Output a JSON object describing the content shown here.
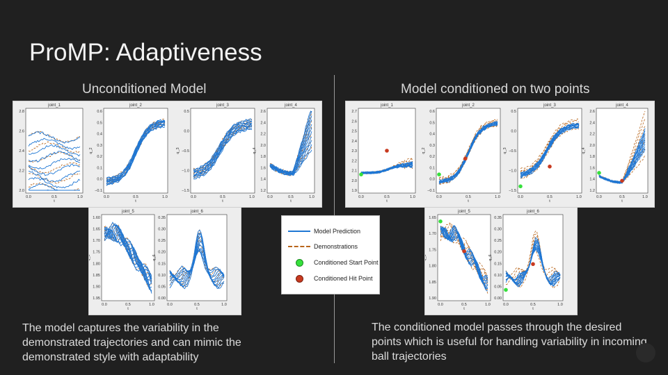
{
  "slide": {
    "title": "ProMP: Adaptiveness",
    "left_heading": "Unconditioned Model",
    "right_heading": "Model conditioned on two points",
    "left_caption": "The model captures the variability in the demonstrated trajectories and can mimic the demonstrated style with adaptability",
    "right_caption": "The conditioned model passes through the desired points which is useful for handling variability in incoming ball trajectories"
  },
  "legend": {
    "prediction": "Model Prediction",
    "demonstrations": "Demonstrations",
    "start_point": "Conditioned Start Point",
    "hit_point": "Conditioned Hit Point"
  },
  "colors": {
    "prediction": "#1f77d4",
    "demonstration": "#b8651b",
    "start_point": "#36e03c",
    "hit_point": "#c83a20"
  },
  "plots": {
    "joint_1": {
      "title": "joint_1",
      "ylabel": "",
      "yticks": [
        "2.8",
        "2.6",
        "2.4",
        "2.2",
        "2.0"
      ],
      "yticks_cond": [
        "2.7",
        "2.6",
        "2.5",
        "2.4",
        "2.3",
        "2.2",
        "2.1",
        "2.0",
        "1.9"
      ]
    },
    "joint_2": {
      "title": "joint_2",
      "ylabel": "q_2",
      "yticks": [
        "0.6",
        "0.5",
        "0.4",
        "0.3",
        "0.2",
        "0.1",
        "0.0",
        "−0.1"
      ],
      "yticks_cond": [
        "0.6",
        "0.5",
        "0.4",
        "0.3",
        "0.2",
        "0.1",
        "0.0",
        "−0.1"
      ]
    },
    "joint_3": {
      "title": "joint_3",
      "ylabel": "q_3",
      "yticks": [
        "0.5",
        "0.0",
        "−0.5",
        "−1.0",
        "−1.5"
      ],
      "yticks_cond": [
        "0.5",
        "0.0",
        "−0.5",
        "−1.0",
        "−1.5"
      ]
    },
    "joint_4": {
      "title": "joint_4",
      "ylabel": "q_4",
      "yticks": [
        "2.6",
        "2.4",
        "2.2",
        "2.0",
        "1.8",
        "1.6",
        "1.4",
        "1.2"
      ],
      "yticks_cond": [
        "2.6",
        "2.4",
        "2.2",
        "2.0",
        "1.8",
        "1.6",
        "1.4",
        "1.2"
      ]
    },
    "joint_5": {
      "title": "joint_5",
      "ylabel": "q_5",
      "yticks": [
        "1.60",
        "1.65",
        "1.70",
        "1.75",
        "1.80",
        "1.85",
        "1.90",
        "1.95"
      ],
      "yticks_cond": [
        "1.65",
        "1.70",
        "1.75",
        "1.80",
        "1.85",
        "1.90"
      ]
    },
    "joint_6": {
      "title": "joint_6",
      "ylabel": "q_6",
      "yticks": [
        "0.35",
        "0.30",
        "0.25",
        "0.20",
        "0.15",
        "0.10",
        "0.05",
        "0.00"
      ],
      "yticks_cond": [
        "0.35",
        "0.30",
        "0.25",
        "0.20",
        "0.15",
        "0.10",
        "0.05",
        "0.00"
      ]
    }
  },
  "xaxis": {
    "label": "t",
    "ticks": [
      "0.0",
      "0.5",
      "1.0"
    ]
  }
}
